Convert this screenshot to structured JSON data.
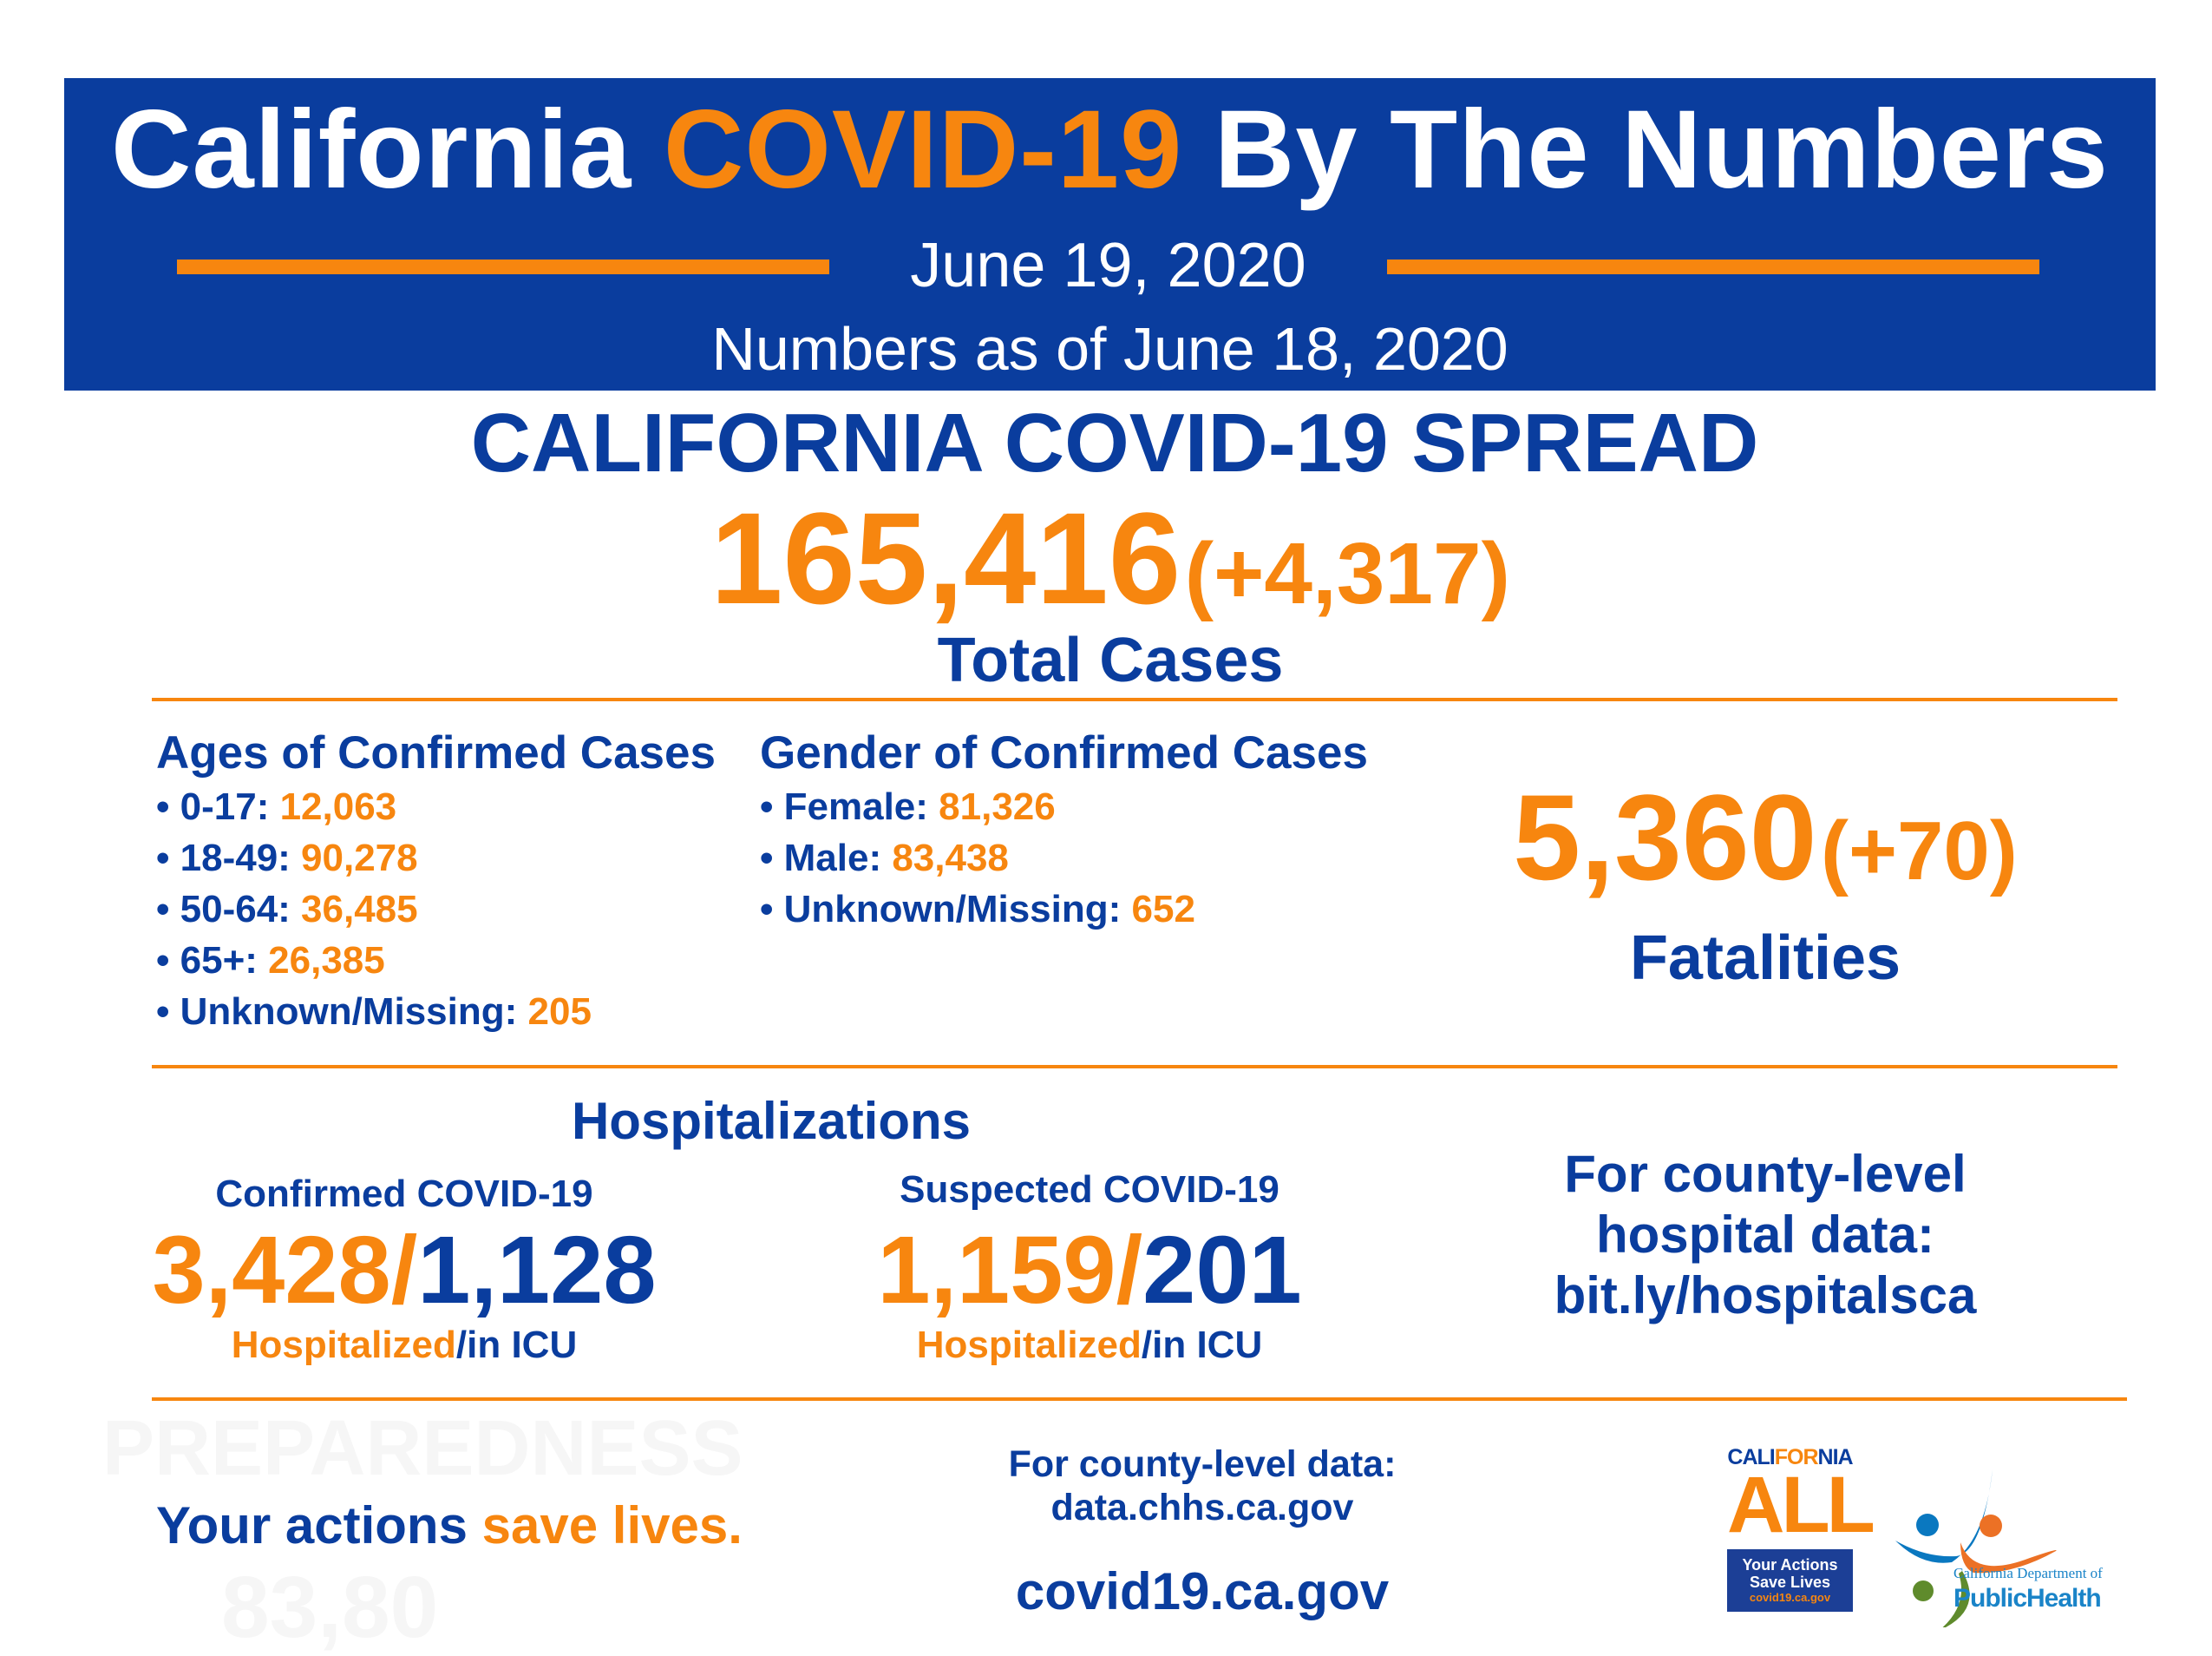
{
  "header": {
    "title_part1": "California ",
    "title_highlight": "COVID-19",
    "title_part2": " By The Numbers",
    "date": "June 19, 2020",
    "as_of": "Numbers as of June 18, 2020"
  },
  "spread": {
    "heading": "CALIFORNIA COVID-19 SPREAD",
    "total": "165,416",
    "change": "(+4,317)",
    "label": "Total Cases"
  },
  "ages": {
    "heading": "Ages of Confirmed Cases",
    "items": [
      {
        "label": "• 0-17: ",
        "value": "12,063"
      },
      {
        "label": "• 18-49: ",
        "value": "90,278"
      },
      {
        "label": "• 50-64: ",
        "value": "36,485"
      },
      {
        "label": "• 65+: ",
        "value": "26,385"
      },
      {
        "label": "• Unknown/Missing: ",
        "value": "205"
      }
    ]
  },
  "gender": {
    "heading": "Gender of Confirmed Cases",
    "items": [
      {
        "label": "• Female: ",
        "value": "81,326"
      },
      {
        "label": "• Male: ",
        "value": "83,438"
      },
      {
        "label": "• Unknown/Missing: ",
        "value": "652"
      }
    ]
  },
  "fatalities": {
    "total": "5,360",
    "change": "(+70)",
    "label": "Fatalities"
  },
  "hospitalizations": {
    "heading": "Hospitalizations",
    "confirmed": {
      "label": "Confirmed COVID-19",
      "hospitalized": "3,428",
      "icu": "1,128",
      "hosp_label": "Hospitalized",
      "icu_label": "/in ICU",
      "slash": "/"
    },
    "suspected": {
      "label": "Suspected COVID-19",
      "hospitalized": "1,159",
      "icu": "201",
      "hosp_label": "Hospitalized",
      "icu_label": "/in ICU",
      "slash": "/"
    },
    "county_link": [
      "For county-level",
      "hospital data:",
      "bit.ly/hospitalsca"
    ]
  },
  "footer": {
    "slogan_part1": "Your actions ",
    "slogan_part2": "save lives.",
    "county_data": [
      "For county-level data:",
      "data.chhs.ca.gov"
    ],
    "website": "covid19.ca.gov",
    "ghost_text": [
      "PREPAREDNESS",
      "83,80"
    ]
  },
  "logos": {
    "california_all": {
      "top_a": "CALI",
      "top_b": "FOR",
      "top_c": "NIA",
      "big": "ALL",
      "box_lines": [
        "Your Actions",
        "Save Lives"
      ],
      "box_url": "covid19.ca.gov"
    },
    "cdph": {
      "line1": "California Department of",
      "line2": "PublicHealth"
    }
  },
  "colors": {
    "blue": "#0a3d9e",
    "orange": "#f7860f"
  }
}
